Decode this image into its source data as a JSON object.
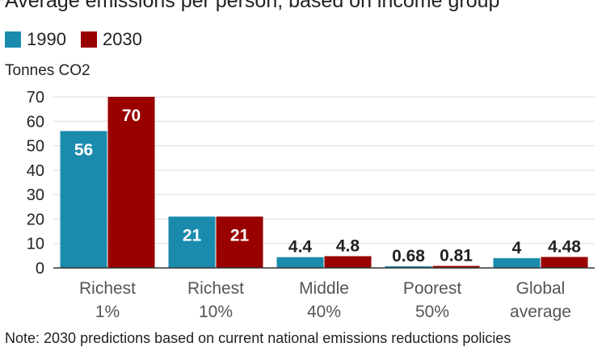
{
  "chart_data": {
    "type": "bar",
    "title": "Average emissions per person, based on income group",
    "ylabel": "Tonnes CO2",
    "categories": [
      [
        "Richest",
        "1%"
      ],
      [
        "Richest",
        "10%"
      ],
      [
        "Middle",
        "40%"
      ],
      [
        "Poorest",
        "50%"
      ],
      [
        "Global",
        "average"
      ]
    ],
    "series": [
      {
        "name": "1990",
        "color": "#1a8bad",
        "values": [
          56,
          21,
          4.4,
          0.68,
          4
        ],
        "labels": [
          "56",
          "21",
          "4.4",
          "0.68",
          "4"
        ]
      },
      {
        "name": "2030",
        "color": "#990000",
        "values": [
          70,
          21,
          4.8,
          0.81,
          4.48
        ],
        "labels": [
          "70",
          "21",
          "4.8",
          "0.81",
          "4.48"
        ]
      }
    ],
    "ylim": [
      0,
      70
    ],
    "yticks": [
      0,
      10,
      20,
      30,
      40,
      50,
      60,
      70
    ],
    "grid": true,
    "legend_position": "top-left",
    "note": "Note: 2030 predictions based on current national emissions reductions policies"
  }
}
